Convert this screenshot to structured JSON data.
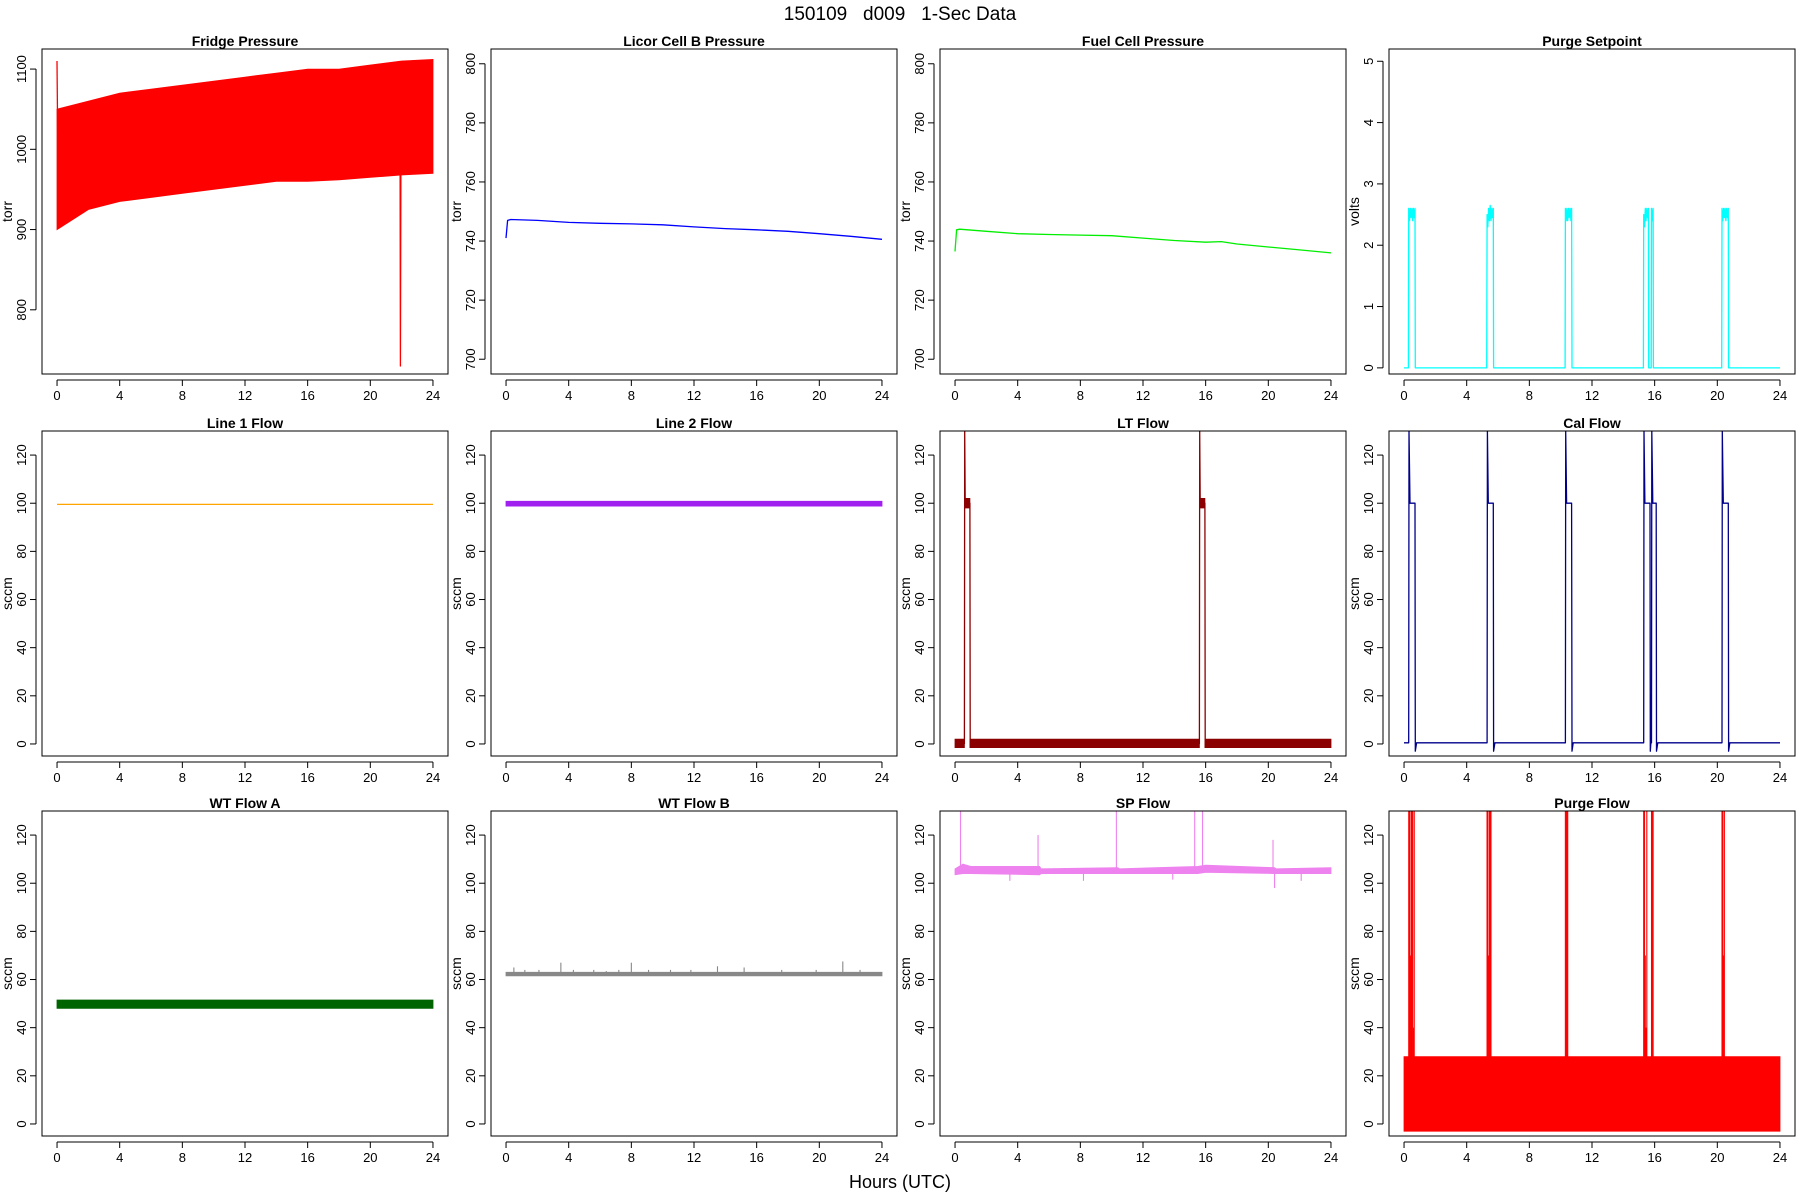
{
  "figure": {
    "title": "150109   d009   1-Sec Data",
    "xlabel": "Hours (UTC)"
  },
  "chart_data": [
    {
      "type": "line",
      "title": "Fridge Pressure",
      "ylabel": "torr",
      "color": "#ff0000",
      "xlim": [
        0,
        24
      ],
      "ylim": [
        720,
        1125
      ],
      "yticks": [
        800,
        900,
        1000,
        1100
      ],
      "xticks": [
        0,
        4,
        8,
        12,
        16,
        20,
        24
      ],
      "series": [
        {
          "style": "band",
          "x": [
            0,
            2,
            4,
            6,
            8,
            10,
            12,
            14,
            16,
            18,
            20,
            22,
            24
          ],
          "low": [
            900,
            925,
            935,
            940,
            945,
            950,
            955,
            960,
            960,
            962,
            965,
            968,
            970
          ],
          "high": [
            1050,
            1060,
            1070,
            1075,
            1080,
            1085,
            1090,
            1095,
            1100,
            1100,
            1105,
            1110,
            1112
          ]
        },
        {
          "style": "line",
          "x": [
            0,
            0.05
          ],
          "y": [
            1110,
            1000
          ]
        },
        {
          "style": "line",
          "x": [
            21.9,
            21.92,
            21.95
          ],
          "y": [
            980,
            730,
            985
          ]
        }
      ]
    },
    {
      "type": "line",
      "title": "Licor Cell B Pressure",
      "ylabel": "torr",
      "color": "#0000ff",
      "xlim": [
        0,
        24
      ],
      "ylim": [
        695,
        805
      ],
      "yticks": [
        700,
        720,
        740,
        760,
        780,
        800
      ],
      "xticks": [
        0,
        4,
        8,
        12,
        16,
        20,
        24
      ],
      "series": [
        {
          "style": "line",
          "x": [
            0,
            0.1,
            0.3,
            2,
            4,
            6,
            8,
            10,
            12,
            14,
            16,
            18,
            20,
            22,
            24
          ],
          "y": [
            741,
            747,
            747.3,
            747,
            746.3,
            746,
            745.8,
            745.5,
            744.8,
            744.2,
            743.8,
            743.3,
            742.5,
            741.6,
            740.6
          ]
        }
      ]
    },
    {
      "type": "line",
      "title": "Fuel Cell Pressure",
      "ylabel": "torr",
      "color": "#00ee00",
      "xlim": [
        0,
        24
      ],
      "ylim": [
        695,
        805
      ],
      "yticks": [
        700,
        720,
        740,
        760,
        780,
        800
      ],
      "xticks": [
        0,
        4,
        8,
        12,
        16,
        20,
        24
      ],
      "series": [
        {
          "style": "line",
          "x": [
            0,
            0.1,
            0.3,
            2,
            4,
            6,
            8,
            10,
            12,
            14,
            16,
            17,
            18,
            20,
            22,
            24
          ],
          "y": [
            736.5,
            743.8,
            744,
            743.3,
            742.5,
            742.2,
            742,
            741.8,
            741,
            740.2,
            739.6,
            739.8,
            739,
            738,
            737,
            736
          ]
        }
      ]
    },
    {
      "type": "line",
      "title": "Purge Setpoint",
      "ylabel": "volts",
      "color": "#00ffff",
      "xlim": [
        0,
        24
      ],
      "ylim": [
        -0.1,
        5.2
      ],
      "yticks": [
        0,
        1,
        2,
        3,
        4,
        5
      ],
      "xticks": [
        0,
        4,
        8,
        12,
        16,
        20,
        24
      ],
      "series": [
        {
          "style": "line",
          "x": [
            0,
            0.28,
            0.3,
            0.35,
            0.4,
            0.45,
            0.5,
            0.55,
            0.6,
            0.65,
            0.7,
            0.72,
            5.28,
            5.3,
            5.35,
            5.4,
            5.45,
            5.5,
            5.55,
            5.6,
            5.65,
            5.7,
            5.72,
            10.28,
            10.3,
            10.35,
            10.4,
            10.45,
            10.5,
            10.55,
            10.6,
            10.65,
            10.7,
            10.72,
            15.28,
            15.3,
            15.35,
            15.4,
            15.45,
            15.5,
            15.55,
            15.6,
            15.62,
            15.78,
            15.8,
            15.85,
            15.9,
            15.92,
            20.28,
            20.3,
            20.35,
            20.4,
            20.45,
            20.5,
            20.55,
            20.6,
            20.65,
            20.7,
            20.72,
            24
          ],
          "y": [
            0,
            0,
            2.6,
            2.4,
            2.6,
            2.45,
            2.6,
            2.4,
            2.6,
            2.45,
            2.6,
            0,
            0,
            2.5,
            2.3,
            2.6,
            2.4,
            2.65,
            2.4,
            2.6,
            2.45,
            2.6,
            0,
            0,
            2.6,
            2.4,
            2.6,
            2.4,
            2.6,
            2.45,
            2.6,
            2.4,
            2.6,
            0,
            0,
            2.5,
            2.3,
            2.6,
            2.4,
            2.6,
            2.45,
            2.6,
            0,
            0,
            2.6,
            2.4,
            2.6,
            0,
            0,
            2.6,
            2.4,
            2.6,
            2.45,
            2.6,
            2.4,
            2.6,
            2.45,
            2.6,
            0,
            0
          ]
        }
      ]
    },
    {
      "type": "line",
      "title": "Line 1 Flow",
      "ylabel": "sccm",
      "color": "#ffa500",
      "xlim": [
        0,
        24
      ],
      "ylim": [
        -5,
        130
      ],
      "yticks": [
        0,
        20,
        40,
        60,
        80,
        100,
        120
      ],
      "xticks": [
        0,
        4,
        8,
        12,
        16,
        20,
        24
      ],
      "series": [
        {
          "style": "line",
          "x": [
            0,
            24
          ],
          "y": [
            99.5,
            99.5
          ]
        }
      ]
    },
    {
      "type": "line",
      "title": "Line 2 Flow",
      "ylabel": "sccm",
      "color": "#a020f0",
      "xlim": [
        0,
        24
      ],
      "ylim": [
        -5,
        130
      ],
      "yticks": [
        0,
        20,
        40,
        60,
        80,
        100,
        120
      ],
      "xticks": [
        0,
        4,
        8,
        12,
        16,
        20,
        24
      ],
      "series": [
        {
          "style": "band",
          "x": [
            0,
            24
          ],
          "low": [
            98.8,
            98.8
          ],
          "high": [
            100.8,
            100.8
          ]
        }
      ]
    },
    {
      "type": "line",
      "title": "LT Flow",
      "ylabel": "sccm",
      "color": "#8b0000",
      "xlim": [
        0,
        24
      ],
      "ylim": [
        -5,
        130
      ],
      "yticks": [
        0,
        20,
        40,
        60,
        80,
        100,
        120
      ],
      "xticks": [
        0,
        4,
        8,
        12,
        16,
        20,
        24
      ],
      "series": [
        {
          "style": "band",
          "x": [
            0,
            0.6
          ],
          "low": [
            -1.5,
            -1.5
          ],
          "high": [
            2,
            2
          ]
        },
        {
          "style": "band",
          "x": [
            0.95,
            15.6
          ],
          "low": [
            -1.5,
            -1.5
          ],
          "high": [
            2,
            2
          ]
        },
        {
          "style": "band",
          "x": [
            15.95,
            24
          ],
          "low": [
            -1.5,
            -1.5
          ],
          "high": [
            2,
            2
          ]
        },
        {
          "style": "band",
          "x": [
            0.65,
            0.95
          ],
          "low": [
            98,
            98
          ],
          "high": [
            102,
            102
          ]
        },
        {
          "style": "band",
          "x": [
            15.65,
            15.95
          ],
          "low": [
            98,
            98
          ],
          "high": [
            102,
            102
          ]
        },
        {
          "style": "line",
          "x": [
            0.6,
            0.62,
            0.65,
            0.95,
            0.97,
            1.0
          ],
          "y": [
            0,
            130,
            100,
            100,
            0,
            0
          ]
        },
        {
          "style": "line",
          "x": [
            15.6,
            15.62,
            15.65,
            15.95,
            15.97,
            16.0
          ],
          "y": [
            0,
            130,
            100,
            100,
            0,
            0
          ]
        }
      ]
    },
    {
      "type": "line",
      "title": "Cal Flow",
      "ylabel": "sccm",
      "color": "#00008b",
      "xlim": [
        0,
        24
      ],
      "ylim": [
        -5,
        130
      ],
      "yticks": [
        0,
        20,
        40,
        60,
        80,
        100,
        120
      ],
      "xticks": [
        0,
        4,
        8,
        12,
        16,
        20,
        24
      ],
      "series": [
        {
          "style": "line",
          "x": [
            0,
            0.3,
            0.32,
            0.38,
            0.7,
            0.72,
            0.8,
            5.3,
            5.32,
            5.38,
            5.7,
            5.72,
            5.8,
            10.3,
            10.32,
            10.38,
            10.7,
            10.72,
            10.8,
            15.3,
            15.32,
            15.38,
            15.7,
            15.72,
            15.76,
            15.8,
            15.82,
            15.88,
            16.1,
            16.12,
            16.2,
            20.3,
            20.32,
            20.38,
            20.7,
            20.72,
            20.8,
            24
          ],
          "y": [
            0.5,
            0.5,
            130,
            100,
            100,
            -3,
            0.5,
            0.5,
            130,
            100,
            100,
            -3,
            0.5,
            0.5,
            130,
            100,
            100,
            -3,
            0.5,
            0.5,
            130,
            100,
            100,
            -3,
            0.5,
            0.5,
            130,
            100,
            100,
            -3,
            0.5,
            0.5,
            130,
            100,
            100,
            -3,
            0.5,
            0.5
          ]
        }
      ]
    },
    {
      "type": "line",
      "title": "WT Flow A",
      "ylabel": "sccm",
      "color": "#006400",
      "xlim": [
        0,
        24
      ],
      "ylim": [
        -5,
        130
      ],
      "yticks": [
        0,
        20,
        40,
        60,
        80,
        100,
        120
      ],
      "xticks": [
        0,
        4,
        8,
        12,
        16,
        20,
        24
      ],
      "series": [
        {
          "style": "band",
          "x": [
            0,
            24
          ],
          "low": [
            48,
            48
          ],
          "high": [
            51.5,
            51.5
          ]
        }
      ]
    },
    {
      "type": "line",
      "title": "WT Flow B",
      "ylabel": "sccm",
      "color": "#888888",
      "xlim": [
        0,
        24
      ],
      "ylim": [
        -5,
        130
      ],
      "yticks": [
        0,
        20,
        40,
        60,
        80,
        100,
        120
      ],
      "xticks": [
        0,
        4,
        8,
        12,
        16,
        20,
        24
      ],
      "series": [
        {
          "style": "band",
          "x": [
            0,
            24
          ],
          "low": [
            61.5,
            61.5
          ],
          "high": [
            63,
            63
          ]
        },
        {
          "style": "spikes",
          "base": 62,
          "x": [
            0.5,
            1.2,
            2.1,
            3.5,
            4.3,
            5.6,
            6.4,
            7.2,
            8.0,
            9.1,
            10.5,
            11.8,
            13.5,
            15.2,
            17.6,
            19.8,
            21.5,
            22.6
          ],
          "y": [
            65,
            64,
            64,
            67,
            64,
            64,
            63.5,
            64,
            67,
            64,
            64,
            64,
            65.5,
            65,
            64,
            64,
            67.5,
            64
          ]
        }
      ]
    },
    {
      "type": "line",
      "title": "SP Flow",
      "ylabel": "sccm",
      "color": "#ee82ee",
      "xlim": [
        0,
        24
      ],
      "ylim": [
        -5,
        130
      ],
      "yticks": [
        0,
        20,
        40,
        60,
        80,
        100,
        120
      ],
      "xticks": [
        0,
        4,
        8,
        12,
        16,
        20,
        24
      ],
      "series": [
        {
          "style": "band",
          "x": [
            0,
            0.5,
            1,
            5.4,
            5.5,
            10.4,
            10.5,
            15.5,
            16.0,
            20.4,
            20.5,
            24
          ],
          "low": [
            103.5,
            104,
            104,
            103.5,
            104,
            104,
            104,
            104,
            104.5,
            104,
            104,
            104
          ],
          "high": [
            106,
            108,
            107,
            107,
            106,
            106.5,
            106,
            107,
            107.5,
            106.5,
            106,
            106.5
          ]
        },
        {
          "style": "spikes",
          "base": 105,
          "x": [
            0.35,
            5.3,
            10.3,
            15.3,
            15.8,
            20.3
          ],
          "y": [
            130,
            120,
            130,
            130,
            130,
            118
          ]
        },
        {
          "style": "spikes",
          "base": 104,
          "x": [
            3.5,
            8.2,
            13.9,
            20.4,
            22.1
          ],
          "y": [
            101,
            101,
            101.5,
            98,
            101
          ]
        }
      ]
    },
    {
      "type": "line",
      "title": "Purge Flow",
      "ylabel": "sccm",
      "color": "#ff0000",
      "xlim": [
        0,
        24
      ],
      "ylim": [
        -5,
        130
      ],
      "yticks": [
        0,
        20,
        40,
        60,
        80,
        100,
        120
      ],
      "xticks": [
        0,
        4,
        8,
        12,
        16,
        20,
        24
      ],
      "series": [
        {
          "style": "band",
          "x": [
            0,
            24
          ],
          "low": [
            -3,
            -3
          ],
          "high": [
            28,
            28
          ]
        },
        {
          "style": "spikes",
          "base": 0,
          "x": [
            0.3,
            0.35,
            0.4,
            0.45,
            0.5,
            0.55,
            0.6,
            0.65,
            5.3,
            5.35,
            5.4,
            5.45,
            5.5,
            5.55,
            10.3,
            10.35,
            10.4,
            10.45,
            15.3,
            15.35,
            15.4,
            15.45,
            15.5,
            15.8,
            15.85,
            15.9,
            20.3,
            20.35,
            20.4,
            20.45
          ],
          "y": [
            130,
            130,
            70,
            130,
            130,
            130,
            40,
            130,
            130,
            130,
            70,
            130,
            130,
            130,
            130,
            130,
            130,
            130,
            130,
            130,
            70,
            40,
            130,
            130,
            130,
            130,
            130,
            130,
            70,
            130
          ]
        }
      ]
    }
  ]
}
